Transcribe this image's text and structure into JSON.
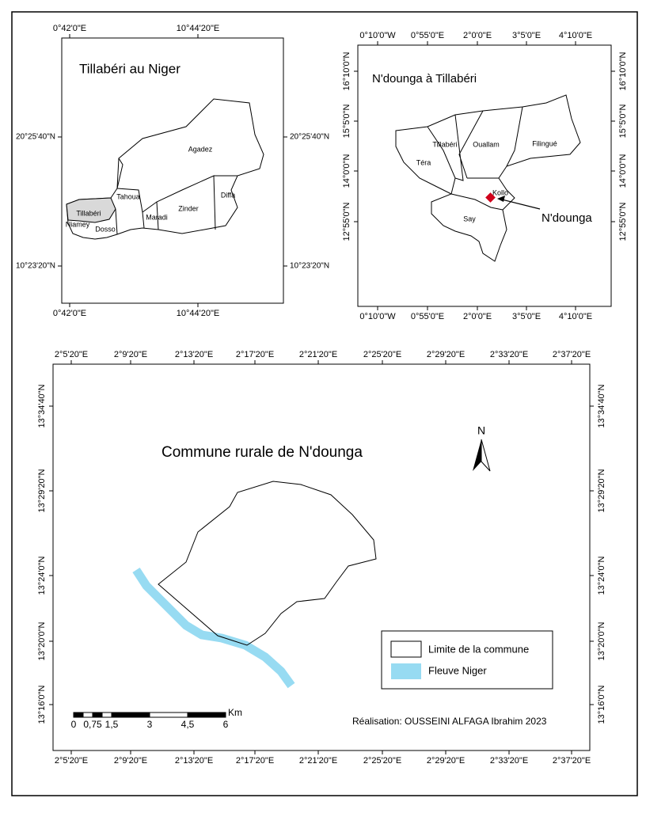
{
  "map1": {
    "title": "Tillabéri au Niger",
    "x_ticks": [
      "0°42'0\"E",
      "10°44'20\"E"
    ],
    "y_ticks": [
      "20°25'40\"N",
      "10°23'20\"N"
    ],
    "regions": [
      "Agadez",
      "Tahoua",
      "Diffa",
      "Zinder",
      "Maradi",
      "Tillabéri",
      "Niamey",
      "Dosso"
    ]
  },
  "map2": {
    "title": "N'dounga à Tillabéri",
    "x_ticks": [
      "0°10'0\"W",
      "0°55'0\"E",
      "2°0'0\"E",
      "3°5'0\"E",
      "4°10'0\"E"
    ],
    "y_ticks": [
      "16°10'0\"N",
      "15°5'0\"N",
      "14°0'0\"N",
      "12°55'0\"N"
    ],
    "regions": [
      "Tillabéri",
      "Ouallam",
      "Filingué",
      "Téra",
      "Kollo",
      "Say"
    ],
    "pointer": "N'dounga"
  },
  "map3": {
    "title": "Commune rurale de N'dounga",
    "x_ticks": [
      "2°5'20\"E",
      "2°9'20\"E",
      "2°13'20\"E",
      "2°17'20\"E",
      "2°21'20\"E",
      "2°25'20\"E",
      "2°29'20\"E",
      "2°33'20\"E",
      "2°37'20\"E"
    ],
    "y_ticks": [
      "13°34'40\"N",
      "13°29'20\"N",
      "13°24'0\"N",
      "13°20'0\"N",
      "13°16'0\"N"
    ],
    "north": "N",
    "legend": [
      "Limite de la commune",
      "Fleuve Niger"
    ],
    "scale": {
      "unit": "Km",
      "labels": [
        "0",
        "0,75",
        "1,5",
        "3",
        "4,5",
        "6"
      ]
    },
    "credit": "Réalisation: OUSSEINI ALFAGA Ibrahim 2023"
  }
}
